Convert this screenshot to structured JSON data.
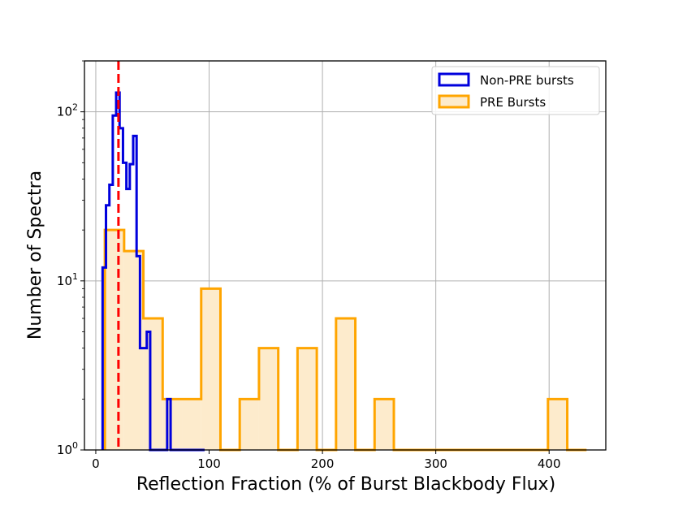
{
  "chart_data": {
    "type": "histogram",
    "title": "",
    "xlabel": "Reflection Fraction (% of Burst Blackbody Flux)",
    "ylabel": "Number of Spectra",
    "xlim": [
      -10,
      450
    ],
    "ylim": [
      1,
      200
    ],
    "yscale": "log",
    "grid": true,
    "legend_position": "top-right",
    "x_ticks": [
      0,
      100,
      200,
      300,
      400
    ],
    "x_tick_labels": [
      "0",
      "100",
      "200",
      "300",
      "400"
    ],
    "y_ticks": [
      1,
      10,
      100
    ],
    "y_tick_labels": [
      {
        "base": "10",
        "exp": "0"
      },
      {
        "base": "10",
        "exp": "1"
      },
      {
        "base": "10",
        "exp": "2"
      }
    ],
    "reference_line": {
      "x": 20,
      "color": "#ff0000",
      "style": "dashed"
    },
    "series": [
      {
        "name": "Non-PRE bursts",
        "color": "#0000dd",
        "fill": "none",
        "edges": [
          6,
          9,
          12,
          15,
          18,
          21,
          24,
          27,
          30,
          33,
          36,
          39,
          42,
          45,
          48,
          51,
          54,
          57,
          60,
          63,
          66,
          69,
          72,
          75,
          78,
          81,
          84,
          87,
          90,
          93,
          96
        ],
        "counts": [
          12,
          28,
          37,
          95,
          130,
          80,
          50,
          35,
          49,
          72,
          14,
          4,
          4,
          5,
          1,
          1,
          1,
          1,
          1,
          2,
          1,
          1,
          1,
          1,
          1,
          1,
          1,
          1,
          1,
          1
        ]
      },
      {
        "name": "PRE Bursts",
        "color": "#ffa500",
        "fill": "#fdebcc",
        "edges": [
          8,
          25,
          42,
          59,
          76,
          93,
          110,
          127,
          144,
          161,
          178,
          195,
          212,
          229,
          246,
          263,
          280,
          297,
          314,
          331,
          348,
          365,
          382,
          399,
          416,
          433
        ],
        "counts": [
          20,
          15,
          6,
          2,
          2,
          9,
          1,
          2,
          4,
          1,
          4,
          1,
          6,
          1,
          2,
          1,
          1,
          1,
          1,
          1,
          1,
          1,
          1,
          2,
          1
        ]
      }
    ]
  }
}
